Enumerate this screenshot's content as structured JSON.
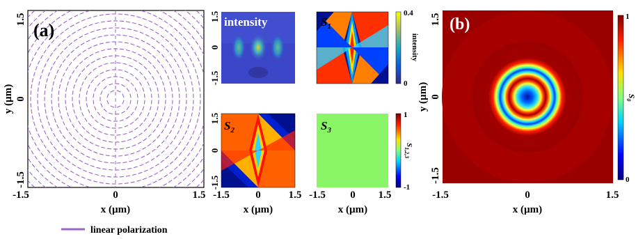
{
  "panel_a": {
    "label": "(a)",
    "xlabel": "x (µm)",
    "ylabel": "y (µm)",
    "xticks": [
      "-1.5",
      "0",
      "1.5"
    ],
    "yticks": [
      "1.5",
      "0",
      "-1.5"
    ],
    "legend": "linear polarization",
    "line_color": "#9966cc"
  },
  "mini": {
    "intensity_label": "intensity",
    "s1_label": "S",
    "s1_sub": "1",
    "s2_label": "S",
    "s2_sub": "2",
    "s3_label": "S",
    "s3_sub": "3",
    "xlabel_left": "x (µm)",
    "xlabel_right": "x (µm)",
    "xticks_left": [
      "-1.5",
      "0",
      "1.5"
    ],
    "xticks_right": [
      "-1.5",
      "0",
      "1.5"
    ],
    "yticks_left": [
      "1.5",
      "0",
      "-1.5"
    ],
    "cb_intensity": {
      "top": "0.4",
      "bottom": "0",
      "label": "intensity"
    },
    "cb_s": {
      "top": "1",
      "bottom": "-1",
      "label": "S",
      "label_sub": "1,2,3"
    }
  },
  "panel_b": {
    "label": "(b)",
    "xlabel": "x (µm)",
    "ylabel": "y (µm)",
    "xticks": [
      "-1.5",
      "0",
      "1.5"
    ],
    "yticks": [
      "1.5",
      "0",
      "-1.5"
    ],
    "cb_top": "1",
    "cb_bottom": "0",
    "cb_label": "S",
    "cb_label_sub": "0"
  }
}
